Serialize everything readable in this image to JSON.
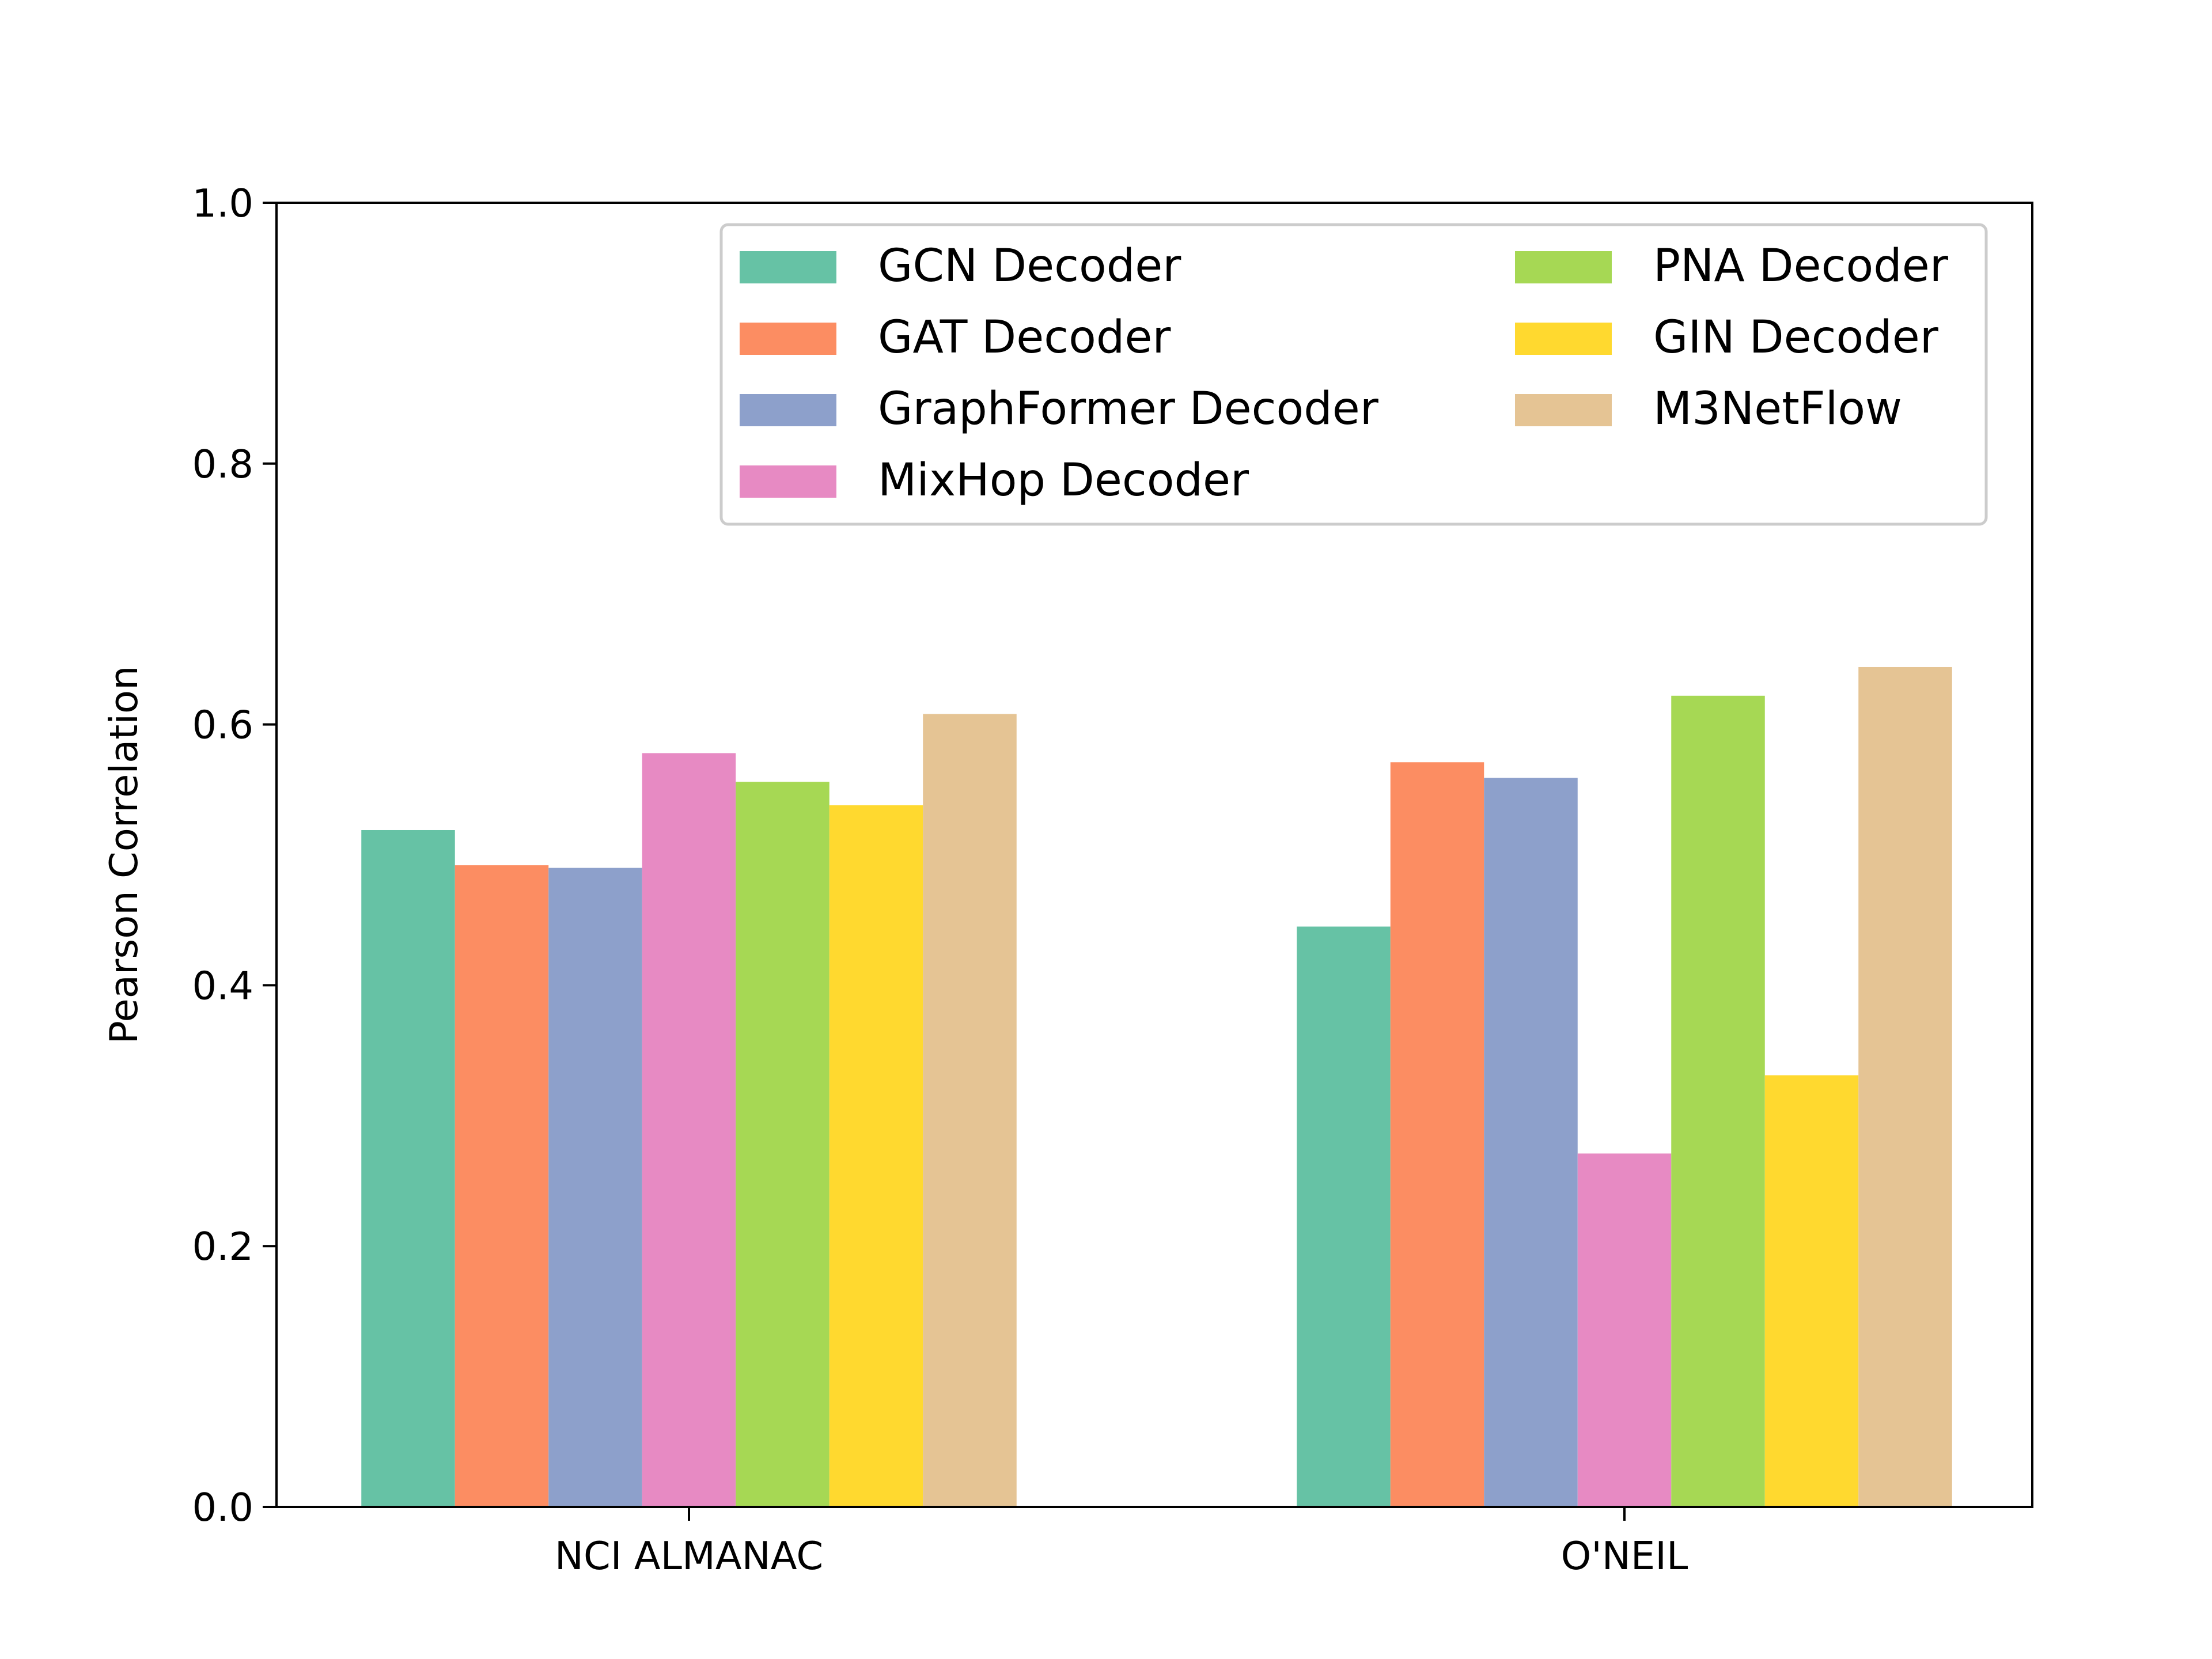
{
  "chart_data": {
    "type": "bar",
    "title": "",
    "xlabel": "",
    "ylabel": "Pearson Correlation",
    "ylim": [
      0.0,
      1.0
    ],
    "yticks": [
      "0.0",
      "0.2",
      "0.4",
      "0.6",
      "0.8",
      "1.0"
    ],
    "grid": false,
    "legend_position": "top-right",
    "legend_columns": 2,
    "categories": [
      "NCI ALMANAC",
      "O'NEIL"
    ],
    "series": [
      {
        "name": "GCN Decoder",
        "color": "#66c2a5",
        "values": [
          0.519,
          0.445
        ]
      },
      {
        "name": "GAT Decoder",
        "color": "#fc8d62",
        "values": [
          0.492,
          0.571
        ]
      },
      {
        "name": "GraphFormer Decoder",
        "color": "#8da0cb",
        "values": [
          0.49,
          0.559
        ]
      },
      {
        "name": "MixHop Decoder",
        "color": "#e78ac3",
        "values": [
          0.578,
          0.271
        ]
      },
      {
        "name": "PNA Decoder",
        "color": "#a6d854",
        "values": [
          0.556,
          0.622
        ]
      },
      {
        "name": "GIN Decoder",
        "color": "#ffd92f",
        "values": [
          0.538,
          0.331
        ]
      },
      {
        "name": "M3NetFlow",
        "color": "#e5c494",
        "values": [
          0.608,
          0.644
        ]
      }
    ]
  }
}
